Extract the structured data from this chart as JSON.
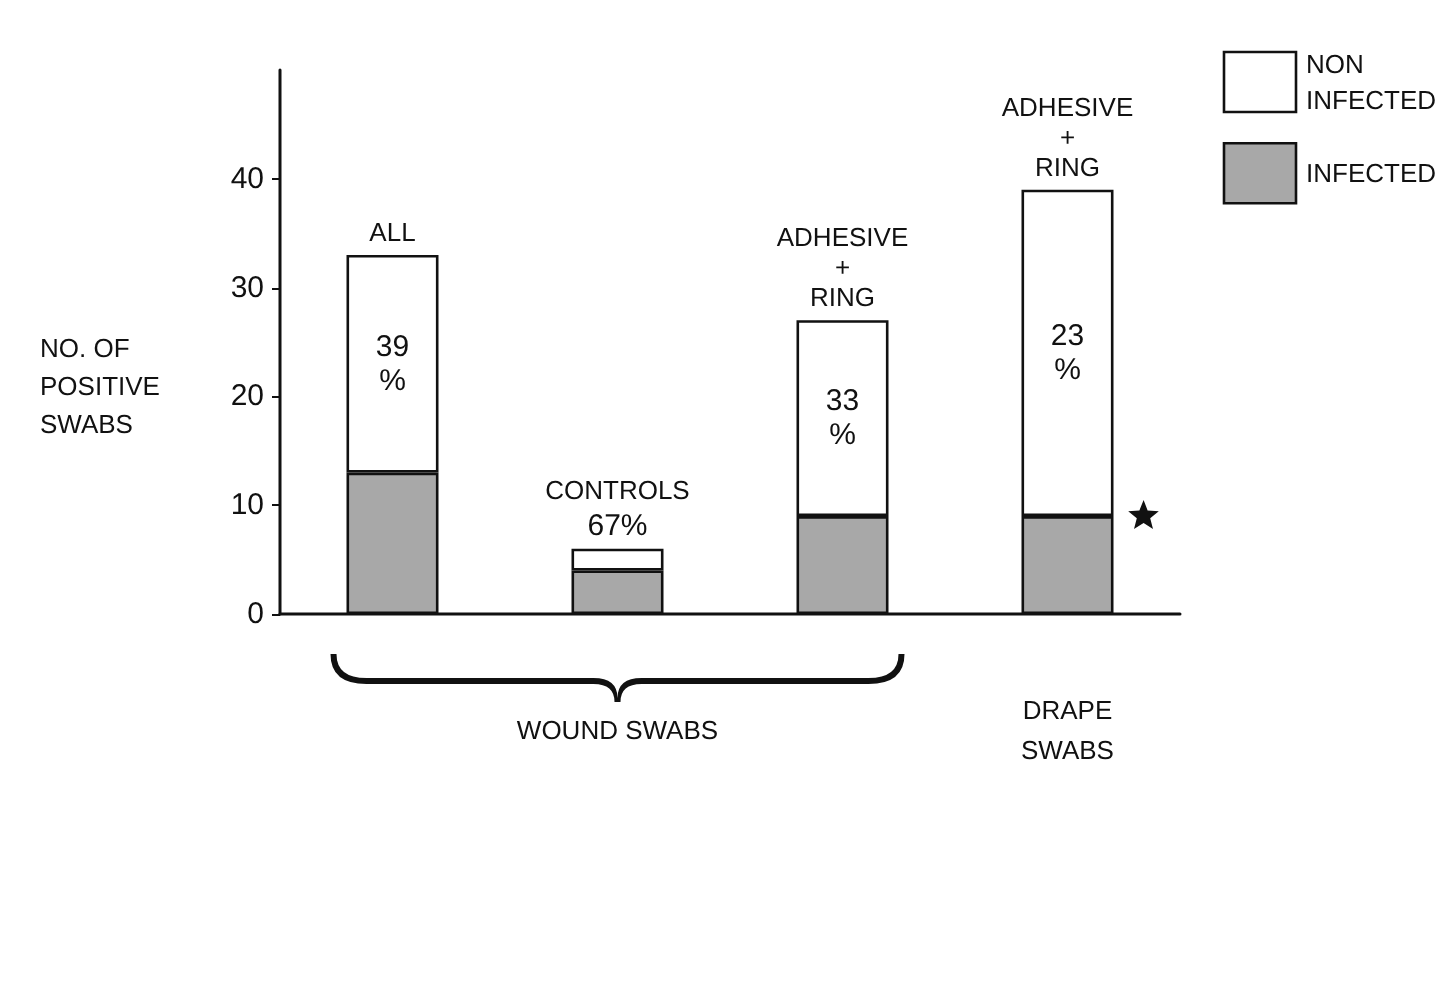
{
  "chart_data": {
    "type": "bar",
    "stacked": true,
    "categories": [
      "ALL",
      "CONTROLS",
      "ADHESIVE + RING",
      "ADHESIVE + RING"
    ],
    "ylabel": "NO. OF POSITIVE SWABS",
    "series": [
      {
        "name": "INFECTED",
        "color": "#a8a8a8",
        "values": [
          13,
          4,
          9,
          9
        ]
      },
      {
        "name": "NON INFECTED",
        "color": "#ffffff",
        "values": [
          20,
          2,
          18,
          30
        ]
      }
    ],
    "ylim": [
      0,
      50
    ],
    "yticks": [
      0,
      10,
      20,
      30,
      40
    ],
    "grid": false,
    "legend": "top right",
    "tick_labels": "y",
    "annotations": [
      "39 %",
      "67%",
      "33 %",
      "23 %",
      "WOUND SWABS",
      "DRAPE SWABS"
    ]
  }
}
